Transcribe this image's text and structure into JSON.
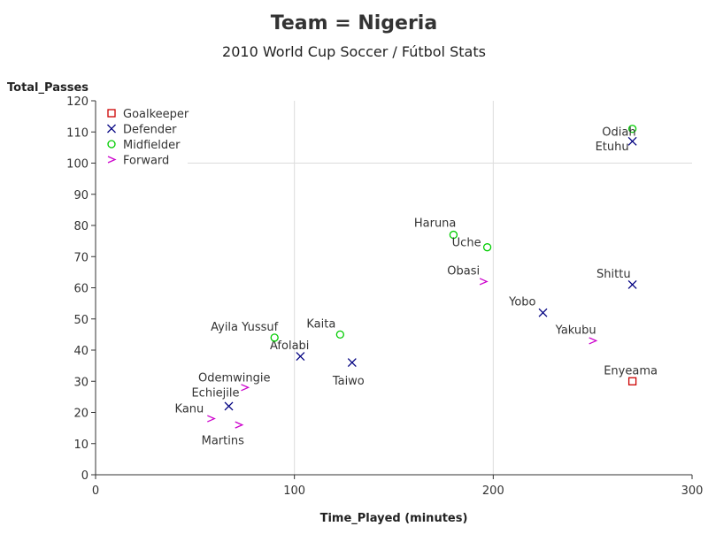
{
  "chart_data": {
    "type": "scatter",
    "title": "Team = Nigeria",
    "subtitle": "2010 World Cup Soccer / Fútbol Stats",
    "xlabel": "Time_Played (minutes)",
    "ylabel": "Total_Passes",
    "xlim": [
      0,
      300
    ],
    "ylim": [
      0,
      120
    ],
    "x_ticks": [
      0,
      100,
      200,
      300
    ],
    "y_ticks": [
      0,
      10,
      20,
      30,
      40,
      50,
      60,
      70,
      80,
      90,
      100,
      110,
      120
    ],
    "grid": "x-major (100, 200) plus a y=100 reference line",
    "legend_position": "top-left",
    "series": [
      {
        "name": "Goalkeeper",
        "marker": "square",
        "color": "#cc0000",
        "points": [
          {
            "label": "Enyeama",
            "x": 270,
            "y": 30
          }
        ]
      },
      {
        "name": "Defender",
        "marker": "x",
        "color": "#000080",
        "points": [
          {
            "label": "Etuhu",
            "x": 270,
            "y": 107
          },
          {
            "label": "Shittu",
            "x": 270,
            "y": 61
          },
          {
            "label": "Yobo",
            "x": 225,
            "y": 52
          },
          {
            "label": "Afolabi",
            "x": 103,
            "y": 38
          },
          {
            "label": "Taiwo",
            "x": 129,
            "y": 36
          },
          {
            "label": "Echiejile",
            "x": 67,
            "y": 22
          }
        ]
      },
      {
        "name": "Midfielder",
        "marker": "circle",
        "color": "#00cc00",
        "points": [
          {
            "label": "Odiah",
            "x": 270,
            "y": 111
          },
          {
            "label": "Haruna",
            "x": 180,
            "y": 77
          },
          {
            "label": "Uche",
            "x": 197,
            "y": 73
          },
          {
            "label": "Kaita",
            "x": 123,
            "y": 45
          },
          {
            "label": "Ayila Yussuf",
            "x": 90,
            "y": 44
          }
        ]
      },
      {
        "name": "Forward",
        "marker": "chevron",
        "color": "#cc00cc",
        "points": [
          {
            "label": "Obasi",
            "x": 195,
            "y": 62
          },
          {
            "label": "Yakubu",
            "x": 250,
            "y": 43
          },
          {
            "label": "Odemwingie",
            "x": 75,
            "y": 28
          },
          {
            "label": "Kanu",
            "x": 58,
            "y": 18
          },
          {
            "label": "Martins",
            "x": 72,
            "y": 16
          }
        ]
      }
    ]
  }
}
